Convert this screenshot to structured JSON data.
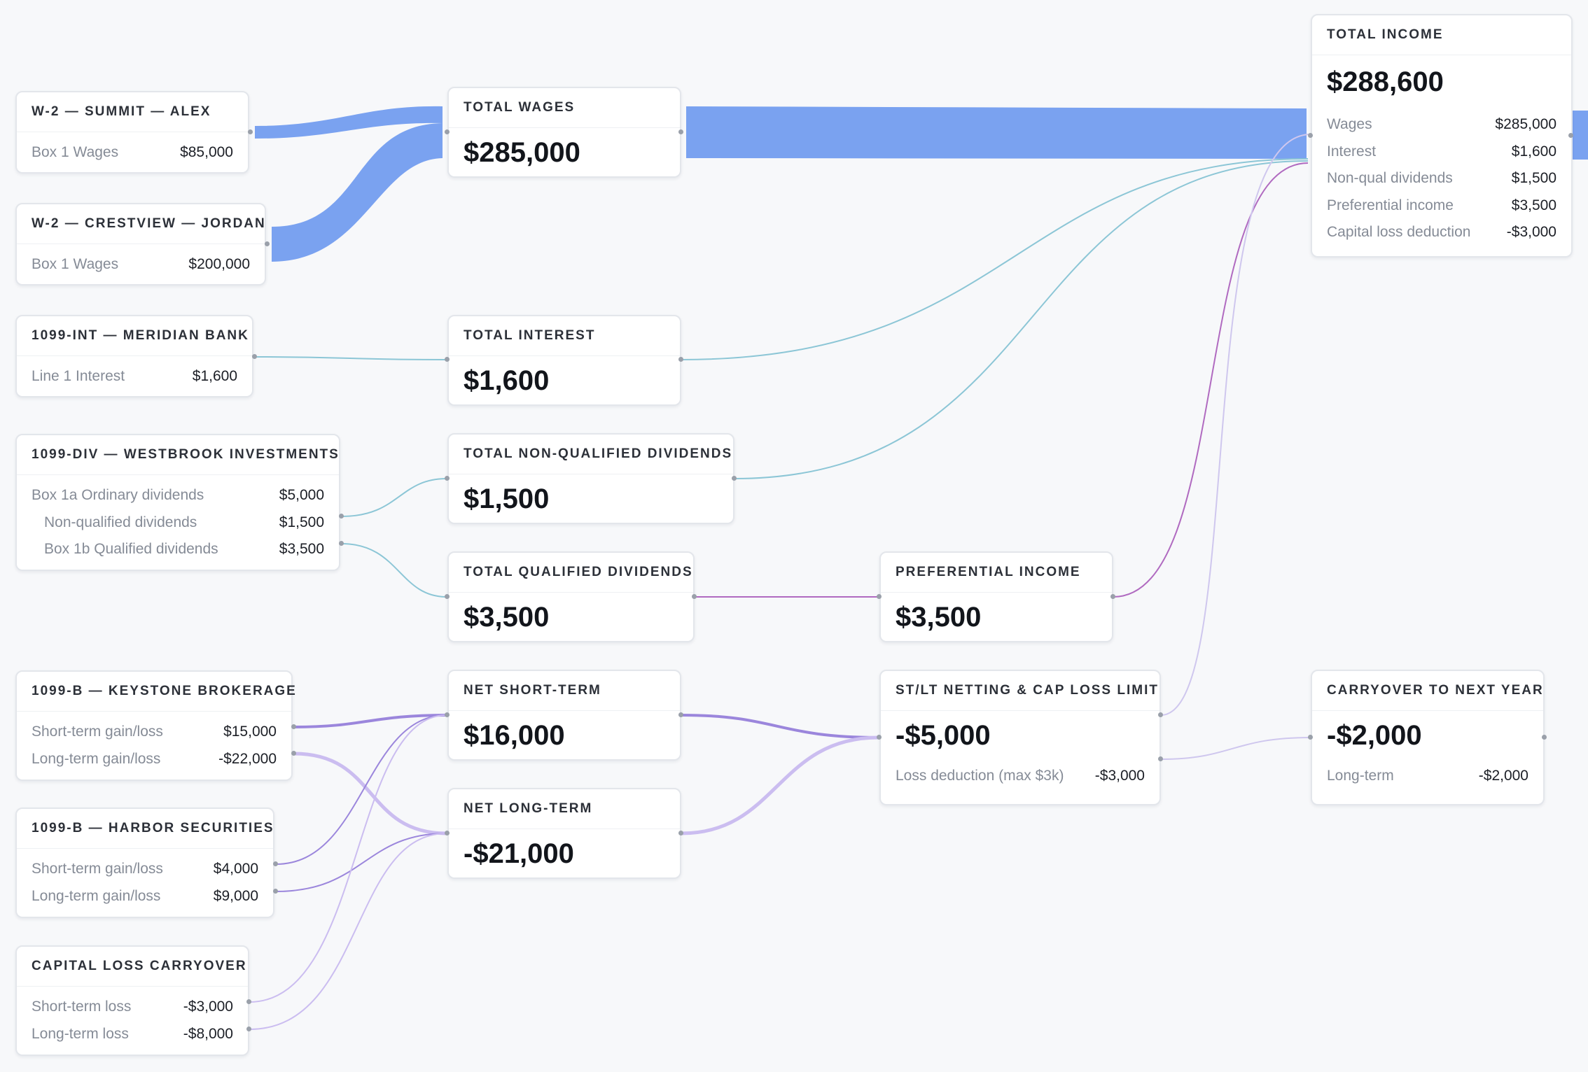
{
  "sources": {
    "w2_summit": {
      "title": "W-2 — SUMMIT — ALEX",
      "rows": [
        {
          "label": "Box 1 Wages",
          "value": "$85,000"
        }
      ]
    },
    "w2_crestview": {
      "title": "W-2 — CRESTVIEW — JORDAN",
      "rows": [
        {
          "label": "Box 1 Wages",
          "value": "$200,000"
        }
      ]
    },
    "int_meridian": {
      "title": "1099-INT — MERIDIAN BANK",
      "rows": [
        {
          "label": "Line 1 Interest",
          "value": "$1,600"
        }
      ]
    },
    "div_westbrook": {
      "title": "1099-DIV — WESTBROOK INVESTMENTS",
      "rows": [
        {
          "label": "Box 1a Ordinary dividends",
          "value": "$5,000"
        },
        {
          "label": "Non-qualified dividends",
          "value": "$1,500"
        },
        {
          "label": "Box 1b Qualified dividends",
          "value": "$3,500"
        }
      ]
    },
    "b_keystone": {
      "title": "1099-B — KEYSTONE BROKERAGE",
      "rows": [
        {
          "label": "Short-term gain/loss",
          "value": "$15,000"
        },
        {
          "label": "Long-term gain/loss",
          "value": "-$22,000"
        }
      ]
    },
    "b_harbor": {
      "title": "1099-B — HARBOR SECURITIES",
      "rows": [
        {
          "label": "Short-term gain/loss",
          "value": "$4,000"
        },
        {
          "label": "Long-term gain/loss",
          "value": "$9,000"
        }
      ]
    },
    "carryover_in": {
      "title": "CAPITAL LOSS CARRYOVER",
      "rows": [
        {
          "label": "Short-term loss",
          "value": "-$3,000"
        },
        {
          "label": "Long-term loss",
          "value": "-$8,000"
        }
      ]
    }
  },
  "aggregates": {
    "total_wages": {
      "title": "TOTAL WAGES",
      "amount": "$285,000"
    },
    "total_interest": {
      "title": "TOTAL INTEREST",
      "amount": "$1,600"
    },
    "total_nonqual": {
      "title": "TOTAL NON-QUALIFIED DIVIDENDS",
      "amount": "$1,500"
    },
    "total_qual": {
      "title": "TOTAL QUALIFIED DIVIDENDS",
      "amount": "$3,500"
    },
    "net_short": {
      "title": "NET SHORT-TERM",
      "amount": "$16,000"
    },
    "net_long": {
      "title": "NET LONG-TERM",
      "amount": "-$21,000"
    },
    "preferential": {
      "title": "PREFERENTIAL INCOME",
      "amount": "$3,500"
    },
    "netting": {
      "title": "ST/LT NETTING & CAP LOSS LIMIT",
      "amount": "-$5,000",
      "rows": [
        {
          "label": "Loss deduction (max $3k)",
          "value": "-$3,000"
        }
      ]
    },
    "carryover_out": {
      "title": "CARRYOVER TO NEXT YEAR",
      "amount": "-$2,000",
      "rows": [
        {
          "label": "Long-term",
          "value": "-$2,000"
        }
      ]
    },
    "total_income": {
      "title": "TOTAL INCOME",
      "amount": "$288,600",
      "rows": [
        {
          "label": "Wages",
          "value": "$285,000"
        },
        {
          "label": "Interest",
          "value": "$1,600"
        },
        {
          "label": "Non-qual dividends",
          "value": "$1,500"
        },
        {
          "label": "Preferential income",
          "value": "$3,500"
        },
        {
          "label": "Capital loss deduction",
          "value": "-$3,000"
        }
      ]
    }
  },
  "colors": {
    "wages_flow": "#7aa2f0",
    "interest_flow": "#8cc6d6",
    "preferential_flow": "#b06ac0",
    "capital_flow_strong": "#9b86dc",
    "capital_flow_light": "#cbbdf0",
    "carry_flow": "#cfc7ee"
  }
}
